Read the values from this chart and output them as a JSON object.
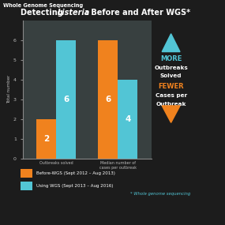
{
  "title_normal": "Detecting ",
  "title_italic": "Listeria",
  "title_rest": ": Before and After WGS*",
  "header_text": "Whole Genome Sequencing",
  "header_bg": "#5bbcb4",
  "background_color": "#1c1c1c",
  "bar_groups": [
    "Outbreaks solved",
    "Median number of cases per outbreak"
  ],
  "orange_values": [
    2,
    6
  ],
  "cyan_values": [
    6,
    4
  ],
  "orange_color": "#f0821e",
  "cyan_color": "#52c5d5",
  "ylabel": "Total number",
  "ylim": [
    0,
    7
  ],
  "yticks": [
    0,
    1,
    2,
    3,
    4,
    5,
    6,
    7
  ],
  "legend_orange": "Before-WGS (Sept 2012 – Aug 2013)",
  "legend_cyan": "Using WGS (Sept 2013 – Aug 2016)",
  "footnote": "* Whole genome sequencing",
  "arrow_up_color": "#52c5d5",
  "arrow_down_color": "#f0821e",
  "axis_color": "#888888",
  "text_color": "#ffffff",
  "tick_label_color": "#bbbbbb",
  "footnote_color": "#52c5d5"
}
